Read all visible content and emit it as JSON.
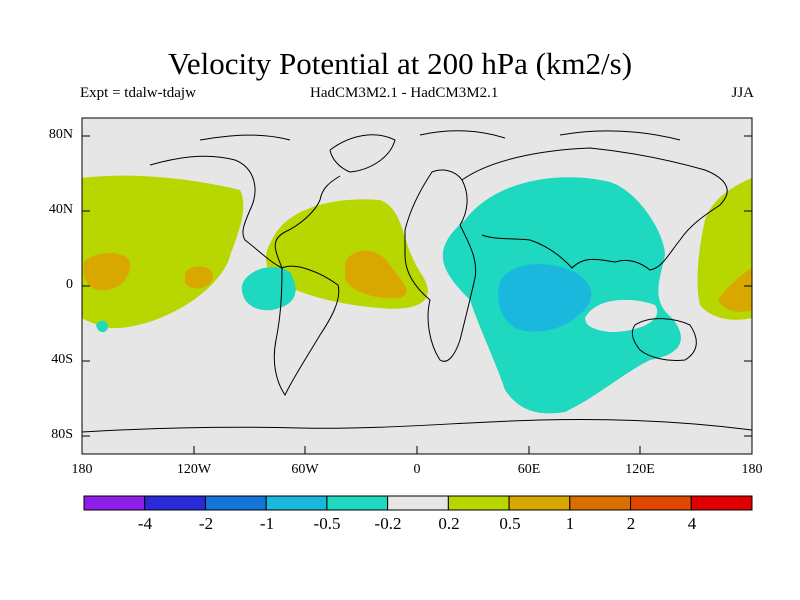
{
  "title": "Velocity Potential at 200 hPa (km2/s)",
  "subtitle_left": "Expt = tdalw-tdajw",
  "subtitle_center": "HadCM3M2.1 - HadCM3M2.1",
  "subtitle_right": "JJA",
  "map": {
    "lat_ticks": [
      "80N",
      "40N",
      "0",
      "40S",
      "80S"
    ],
    "lon_ticks": [
      "180",
      "120W",
      "60W",
      "0",
      "60E",
      "120E",
      "180"
    ]
  },
  "colorbar": {
    "labels": [
      "-4",
      "-2",
      "-1",
      "-0.5",
      "-0.2",
      "0.2",
      "0.5",
      "1",
      "2",
      "4"
    ],
    "colors": [
      "#8f1fe6",
      "#2a2ad9",
      "#1574d9",
      "#1ab8dc",
      "#1ed8c0",
      "#e6e6e6",
      "#b8d600",
      "#d8a800",
      "#d87000",
      "#e04800",
      "#e00000"
    ]
  },
  "colors": {
    "background_field": "#e6e6e6",
    "positive_weak": "#b8d600",
    "positive_mid": "#d8a800",
    "negative_weak": "#1ed8c0",
    "negative_mid": "#1ab8dc"
  }
}
